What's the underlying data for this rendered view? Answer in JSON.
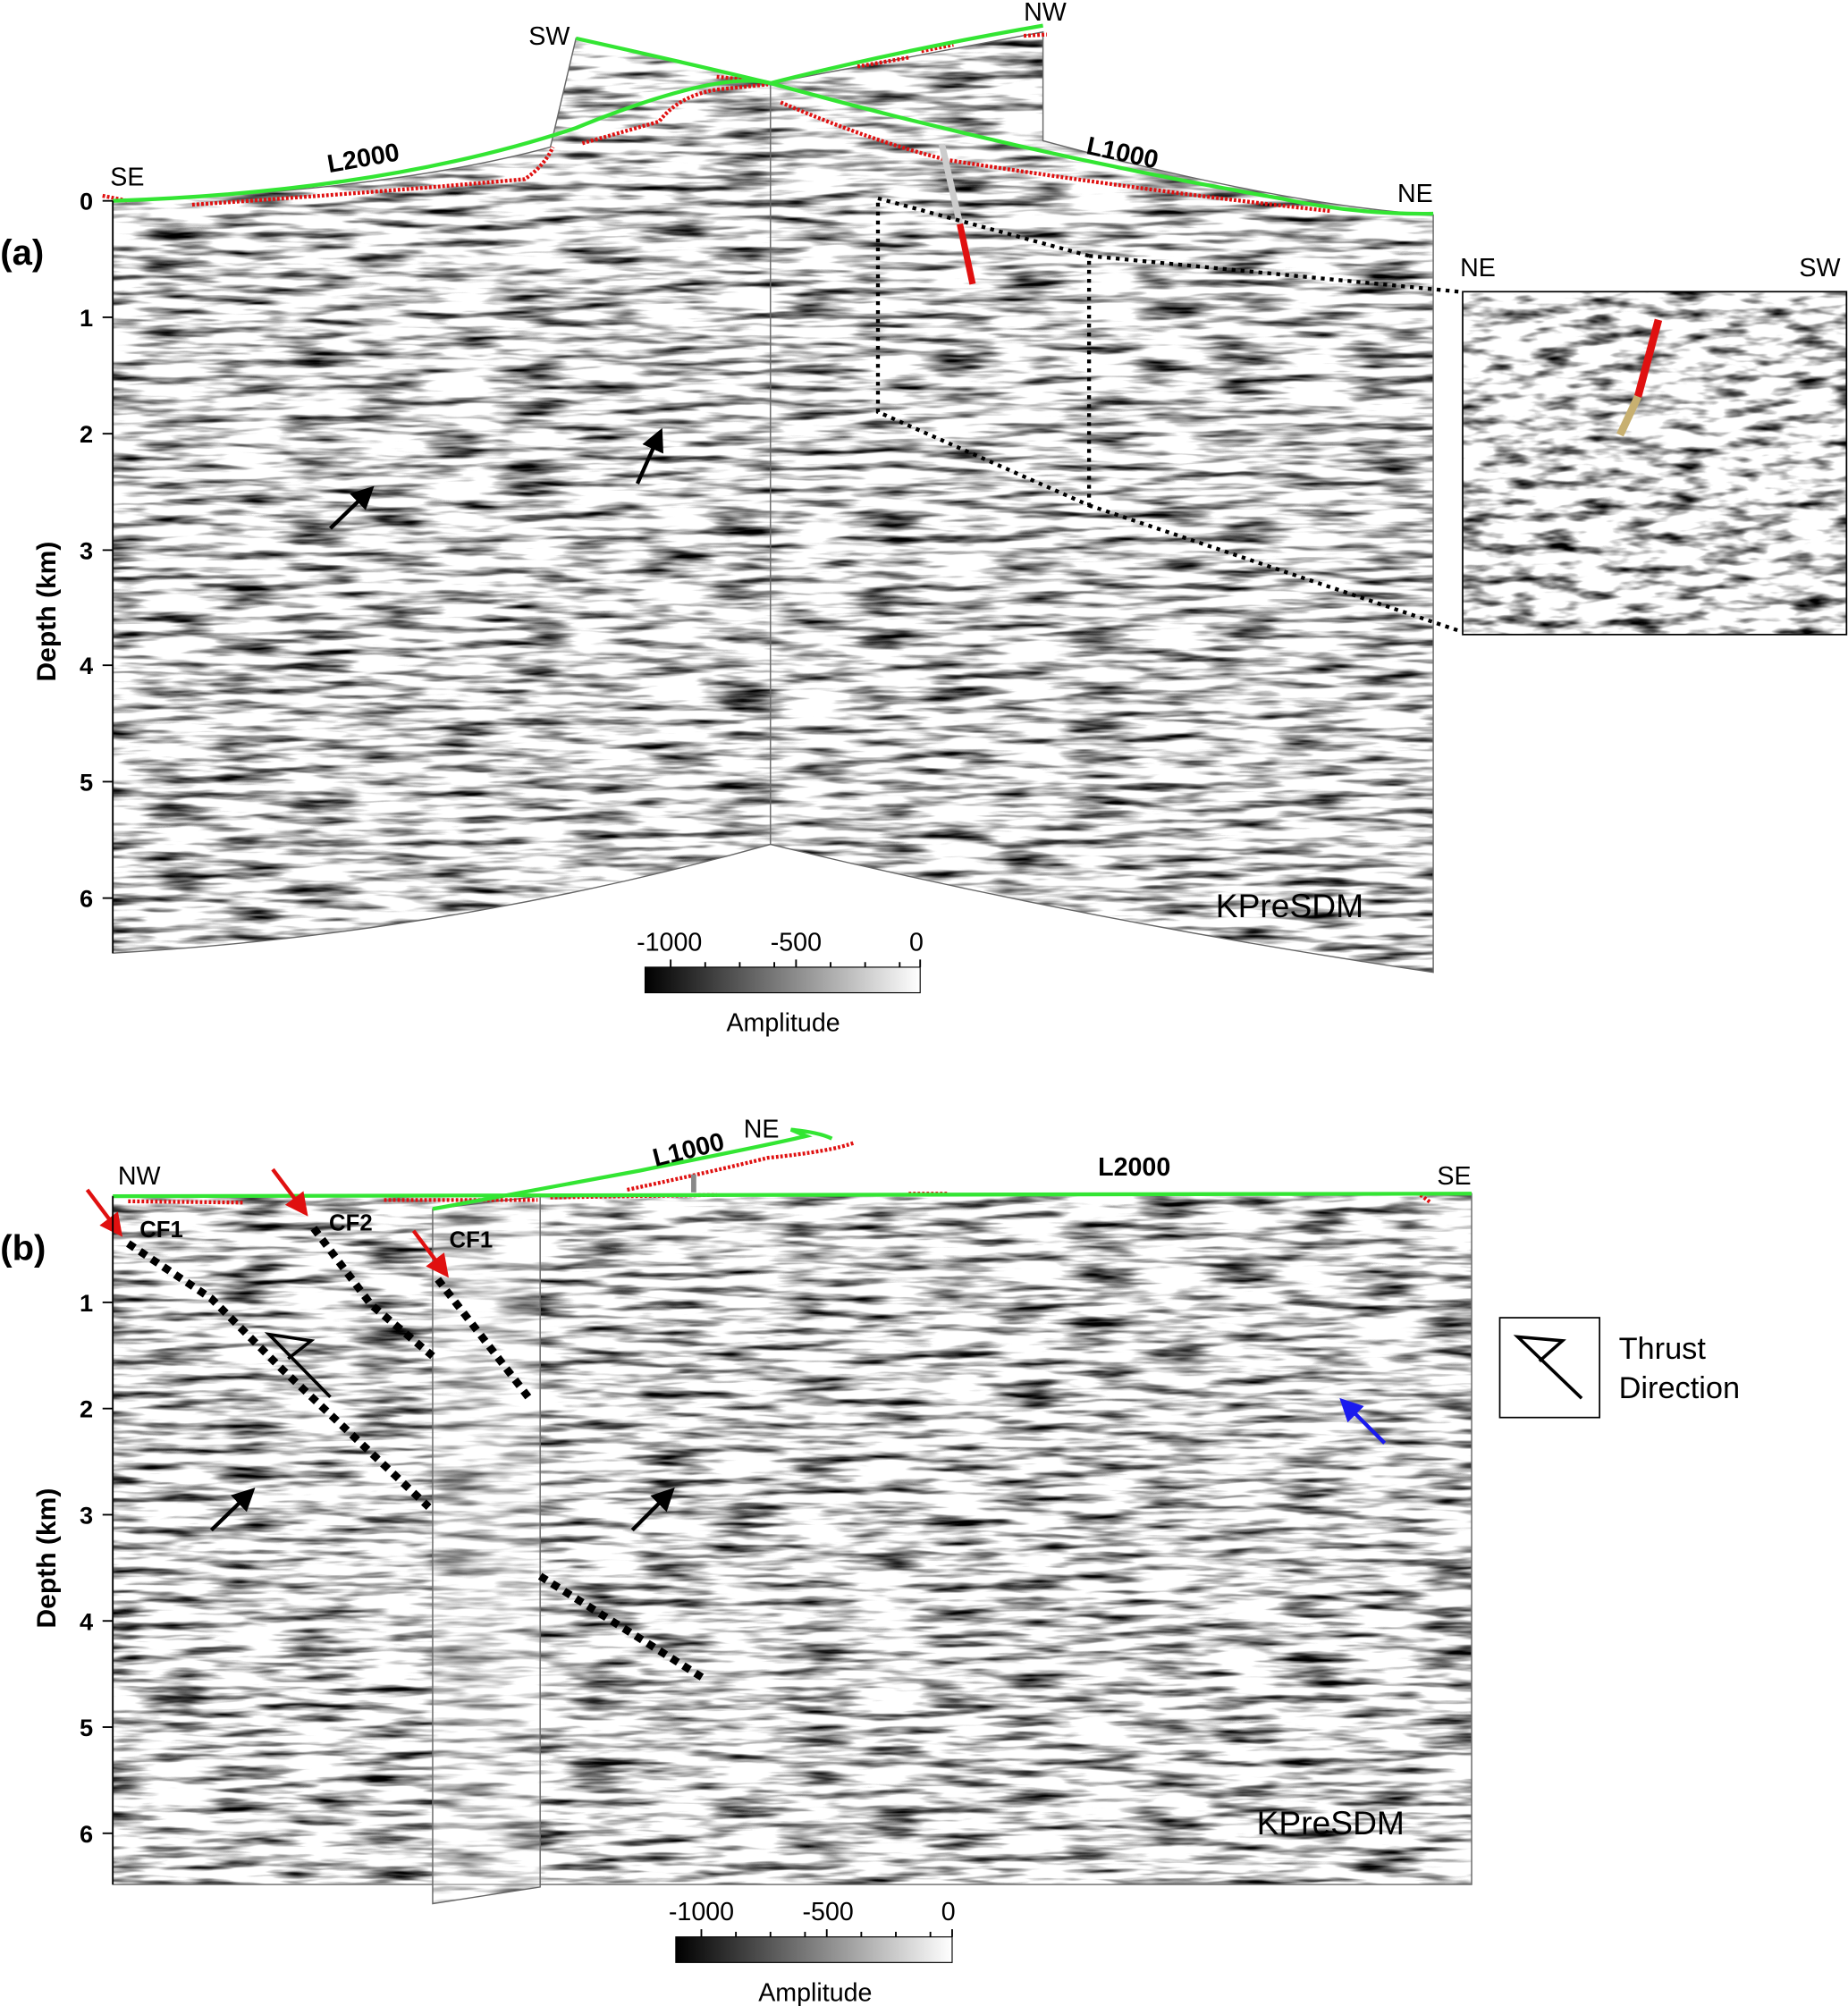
{
  "panel_a": {
    "label": "(a)",
    "y_axis_title": "Depth (km)",
    "y_ticks": [
      "0",
      "1",
      "2",
      "3",
      "4",
      "5",
      "6"
    ],
    "direction_labels": {
      "left": "SE",
      "top_left": "SW",
      "top_right": "NW",
      "right": "NE"
    },
    "line_labels": [
      "L2000",
      "L1000"
    ],
    "method_label": "KPreSDM",
    "inset": {
      "left_label": "NE",
      "right_label": "SW"
    },
    "colorbar": {
      "ticks": [
        "-1000",
        "-500",
        "0"
      ],
      "title": "Amplitude",
      "range": [
        -1100,
        0
      ]
    }
  },
  "panel_b": {
    "label": "(b)",
    "y_axis_title": "Depth (km)",
    "y_ticks": [
      "1",
      "2",
      "3",
      "4",
      "5",
      "6"
    ],
    "direction_labels": {
      "left": "NW",
      "top": "NE",
      "right": "SE"
    },
    "line_labels": [
      "L1000",
      "L2000"
    ],
    "fault_labels": [
      "CF1",
      "CF2",
      "CF1"
    ],
    "method_label": "KPreSDM",
    "legend": {
      "line1": "Thrust",
      "line2": "Direction"
    },
    "colorbar": {
      "ticks": [
        "-1000",
        "-500",
        "0"
      ],
      "title": "Amplitude",
      "range": [
        -1100,
        0
      ]
    }
  },
  "colors": {
    "surface_line": "#33e533",
    "topography": "#e01010",
    "arrow_highlight": "#e01010",
    "arrow_blue": "#1a1aee"
  }
}
